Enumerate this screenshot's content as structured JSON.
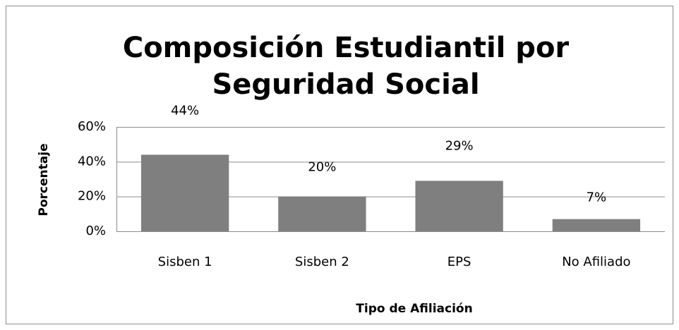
{
  "chart_data": {
    "type": "bar",
    "title": [
      "Composición Estudiantil por",
      "Seguridad Social"
    ],
    "y_label": "Porcentaje",
    "x_label": "Tipo de Afiliación",
    "categories": [
      "Sisben 1",
      "Sisben 2",
      "EPS",
      "No Afiliado"
    ],
    "values": [
      44,
      20,
      29,
      7
    ],
    "value_labels": [
      "44%",
      "20%",
      "29%",
      "7%"
    ],
    "color": "#7f7f7f",
    "ylim": [
      0,
      60
    ],
    "yticks": [
      {
        "value": 0,
        "label": "0%"
      },
      {
        "value": 20,
        "label": "20%"
      },
      {
        "value": 40,
        "label": "40%"
      },
      {
        "value": 60,
        "label": "60%"
      }
    ],
    "grid": true
  }
}
